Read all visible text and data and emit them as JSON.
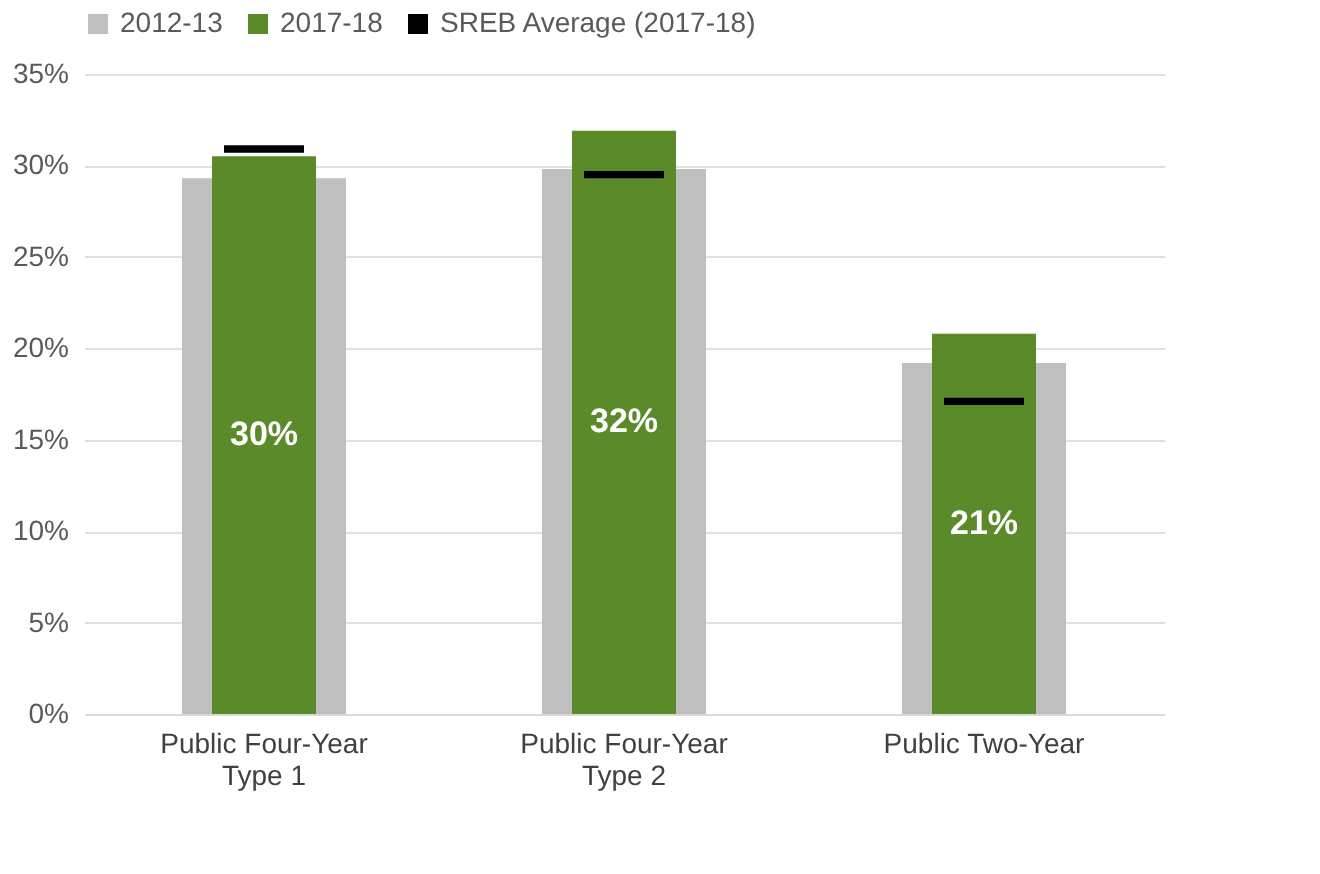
{
  "chart_data": {
    "type": "bar",
    "categories": [
      "Public Four-Year Type 1",
      "Public Four-Year Type 2",
      "Public Two-Year"
    ],
    "series": [
      {
        "name": "2012-13",
        "color": "#bfbfbf",
        "values": [
          29.3,
          29.8,
          19.2
        ]
      },
      {
        "name": "2017-18",
        "color": "#5b8a2b",
        "values": [
          30.5,
          31.9,
          20.8
        ],
        "value_labels": [
          "30%",
          "32%",
          "21%"
        ]
      },
      {
        "name": "SREB Average (2017-18)",
        "color": "#000000",
        "base": [
          30.7,
          29.3,
          16.9
        ],
        "values": [
          0.4,
          0.4,
          0.4
        ]
      }
    ],
    "ylim": [
      0,
      35
    ],
    "yticks": [
      {
        "value": 0,
        "label": "0%"
      },
      {
        "value": 5,
        "label": "5%"
      },
      {
        "value": 10,
        "label": "10%"
      },
      {
        "value": 15,
        "label": "15%"
      },
      {
        "value": 20,
        "label": "20%"
      },
      {
        "value": 25,
        "label": "25%"
      },
      {
        "value": 30,
        "label": "30%"
      },
      {
        "value": 35,
        "label": "35%"
      }
    ],
    "grid": "y",
    "legend": "top"
  }
}
